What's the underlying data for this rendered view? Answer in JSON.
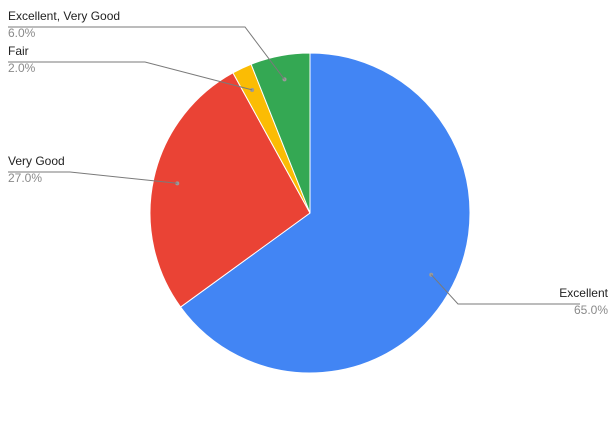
{
  "chart_data": {
    "type": "pie",
    "slices": [
      {
        "label": "Excellent",
        "value": 65.0,
        "pct_text": "65.0%",
        "color": "#4285F4"
      },
      {
        "label": "Very Good",
        "value": 27.0,
        "pct_text": "27.0%",
        "color": "#EA4335"
      },
      {
        "label": "Fair",
        "value": 2.0,
        "pct_text": "2.0%",
        "color": "#FBBC04"
      },
      {
        "label": "Excellent, Very Good",
        "value": 6.0,
        "pct_text": "6.0%",
        "color": "#34A853"
      }
    ],
    "start_angle_deg": 0,
    "direction": "clockwise",
    "legend": "none",
    "labels": "outside-with-leader-lines"
  }
}
